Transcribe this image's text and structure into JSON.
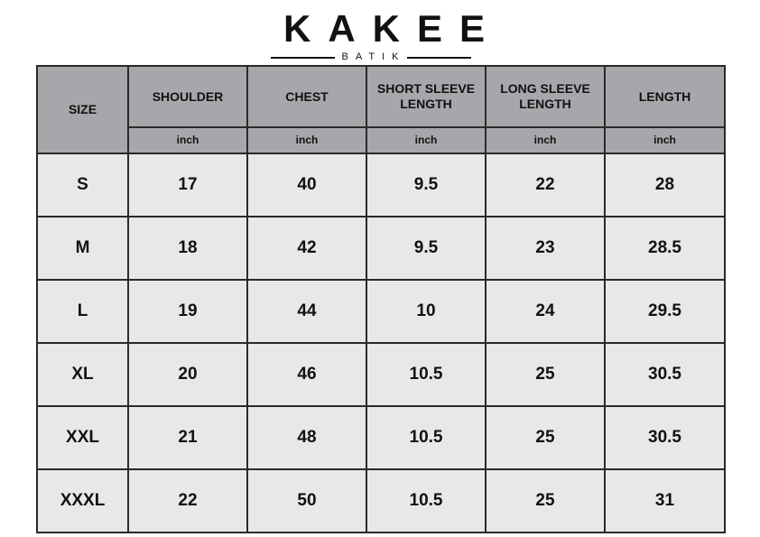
{
  "brand": {
    "name": "KAKEE",
    "tagline": "BATIK"
  },
  "colors": {
    "header_bg": "#a6a7aa",
    "cell_bg": "#e7e8ea",
    "border": "#2a2a2a"
  },
  "table": {
    "columns": [
      "SIZE",
      "SHOULDER",
      "CHEST",
      "SHORT SLEEVE LENGTH",
      "LONG SLEEVE LENGTH",
      "LENGTH"
    ],
    "units": [
      "inch",
      "inch",
      "inch",
      "inch",
      "inch"
    ],
    "rows": [
      [
        "S",
        "17",
        "40",
        "9.5",
        "22",
        "28"
      ],
      [
        "M",
        "18",
        "42",
        "9.5",
        "23",
        "28.5"
      ],
      [
        "L",
        "19",
        "44",
        "10",
        "24",
        "29.5"
      ],
      [
        "XL",
        "20",
        "46",
        "10.5",
        "25",
        "30.5"
      ],
      [
        "XXL",
        "21",
        "48",
        "10.5",
        "25",
        "30.5"
      ],
      [
        "XXXL",
        "22",
        "50",
        "10.5",
        "25",
        "31"
      ]
    ]
  }
}
